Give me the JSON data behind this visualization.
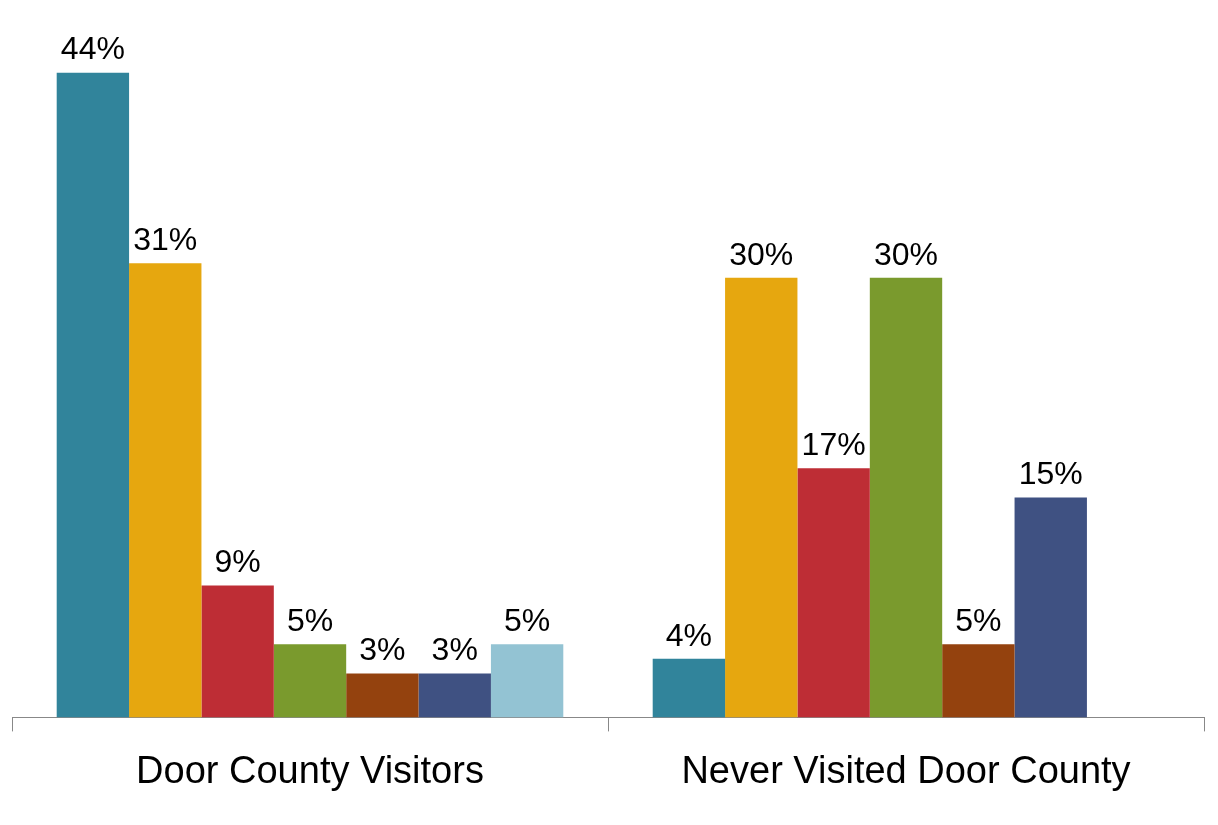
{
  "chart_data": {
    "type": "bar",
    "categories": [
      "Door County Visitors",
      "Never Visited Door County"
    ],
    "series": [
      {
        "color": "#31849b",
        "values": [
          44,
          4
        ],
        "value_labels": [
          "44%",
          "4%"
        ]
      },
      {
        "color": "#e6a70f",
        "values": [
          31,
          30
        ],
        "value_labels": [
          "31%",
          "30%"
        ]
      },
      {
        "color": "#be2d35",
        "values": [
          9,
          17
        ],
        "value_labels": [
          "9%",
          "17%"
        ]
      },
      {
        "color": "#7a9a2d",
        "values": [
          5,
          30
        ],
        "value_labels": [
          "5%",
          "30%"
        ]
      },
      {
        "color": "#94420e",
        "values": [
          3,
          5
        ],
        "value_labels": [
          "3%",
          "5%"
        ]
      },
      {
        "color": "#3f5182",
        "values": [
          3,
          15
        ],
        "value_labels": [
          "3%",
          "15%"
        ]
      },
      {
        "color": "#93c3d3",
        "values": [
          5,
          null
        ],
        "value_labels": [
          "5%",
          null
        ]
      }
    ],
    "grid": false,
    "legend": false,
    "tick_labels": "x"
  }
}
